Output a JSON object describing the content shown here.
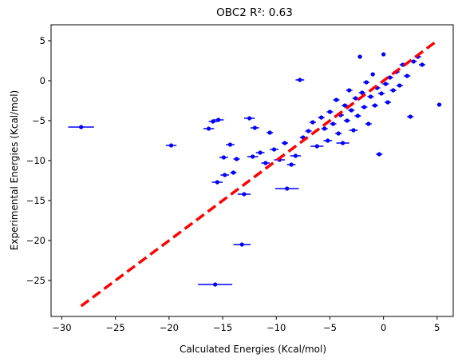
{
  "chart_data": {
    "type": "scatter",
    "title": "OBC2 R²: 0.63",
    "xlabel": "Calculated Energies (Kcal/mol)",
    "ylabel": "Experimental Energies (Kcal/mol)",
    "xlim": [
      -31,
      6.5
    ],
    "ylim": [
      -29.5,
      7
    ],
    "xticks": [
      -30,
      -25,
      -20,
      -15,
      -10,
      -5,
      0,
      5
    ],
    "yticks": [
      -25,
      -20,
      -15,
      -10,
      -5,
      0,
      5
    ],
    "grid": false,
    "legend": "none",
    "reference_line": {
      "x": [
        -28.2,
        5
      ],
      "y": [
        -28.2,
        5
      ],
      "color": "#ff0000",
      "style": "dashed"
    },
    "point_color": "#0000ff",
    "series": [
      {
        "points": [
          {
            "x": -28.2,
            "y": -5.8,
            "xerr": 1.2
          },
          {
            "x": -19.8,
            "y": -8.1,
            "xerr": 0.5
          },
          {
            "x": -15.7,
            "y": -25.5,
            "xerr": 1.6
          },
          {
            "x": -16.3,
            "y": -6.0,
            "xerr": 0.5
          },
          {
            "x": -15.9,
            "y": -5.1,
            "xerr": 0.4
          },
          {
            "x": -15.4,
            "y": -4.9,
            "xerr": 0.5
          },
          {
            "x": -14.9,
            "y": -9.6,
            "xerr": 0.4
          },
          {
            "x": -15.5,
            "y": -12.7,
            "xerr": 0.5
          },
          {
            "x": -14.8,
            "y": -11.8,
            "xerr": 0.4
          },
          {
            "x": -14.3,
            "y": -8.0,
            "xerr": 0.4
          },
          {
            "x": -14.0,
            "y": -11.5,
            "xerr": 0.3
          },
          {
            "x": -13.7,
            "y": -9.8,
            "xerr": 0.3
          },
          {
            "x": -13.0,
            "y": -14.2,
            "xerr": 0.6
          },
          {
            "x": -13.2,
            "y": -20.5,
            "xerr": 0.8
          },
          {
            "x": -12.5,
            "y": -4.7,
            "xerr": 0.5
          },
          {
            "x": -12.0,
            "y": -5.9,
            "xerr": 0.4
          },
          {
            "x": -12.2,
            "y": -9.5,
            "xerr": 0.5
          },
          {
            "x": -11.5,
            "y": -9.0,
            "xerr": 0.4
          },
          {
            "x": -11.0,
            "y": -10.3,
            "xerr": 0.4
          },
          {
            "x": -10.6,
            "y": -6.5,
            "xerr": 0.3
          },
          {
            "x": -10.2,
            "y": -8.6,
            "xerr": 0.4
          },
          {
            "x": -9.7,
            "y": -9.9,
            "xerr": 0.5
          },
          {
            "x": -9.2,
            "y": -7.8,
            "xerr": 0.3
          },
          {
            "x": -9.0,
            "y": -13.5,
            "xerr": 1.1
          },
          {
            "x": -8.6,
            "y": -10.5,
            "xerr": 0.4
          },
          {
            "x": -8.2,
            "y": -9.4,
            "xerr": 0.5
          },
          {
            "x": -7.8,
            "y": 0.1,
            "xerr": 0.4
          },
          {
            "x": -7.5,
            "y": -7.1,
            "xerr": 0.3
          },
          {
            "x": -7.0,
            "y": -6.3,
            "xerr": 0.3
          },
          {
            "x": -6.6,
            "y": -5.2,
            "xerr": 0.3
          },
          {
            "x": -6.2,
            "y": -8.2,
            "xerr": 0.6
          },
          {
            "x": -5.8,
            "y": -4.6,
            "xerr": 0.3
          },
          {
            "x": -5.5,
            "y": -6.0,
            "xerr": 0.3
          },
          {
            "x": -5.2,
            "y": -7.5,
            "xerr": 0.4
          },
          {
            "x": -5.0,
            "y": -3.9,
            "xerr": 0.3
          },
          {
            "x": -4.7,
            "y": -5.4,
            "xerr": 0.3
          },
          {
            "x": -4.4,
            "y": -2.4,
            "xerr": 0.3
          },
          {
            "x": -4.2,
            "y": -6.6,
            "xerr": 0.3
          },
          {
            "x": -4.0,
            "y": -4.3,
            "xerr": 0.3
          },
          {
            "x": -3.8,
            "y": -7.8,
            "xerr": 0.6
          },
          {
            "x": -3.6,
            "y": -3.1,
            "xerr": 0.3
          },
          {
            "x": -3.4,
            "y": -5.0,
            "xerr": 0.3
          },
          {
            "x": -3.2,
            "y": -1.2,
            "xerr": 0.3
          },
          {
            "x": -3.0,
            "y": -3.7,
            "xerr": 0.3
          },
          {
            "x": -2.8,
            "y": -6.2,
            "xerr": 0.4
          },
          {
            "x": -2.6,
            "y": -2.2,
            "xerr": 0.3
          },
          {
            "x": -2.4,
            "y": -4.4,
            "xerr": 0.3
          },
          {
            "x": -2.2,
            "y": 3.0,
            "xerr": 0.2
          },
          {
            "x": -2.0,
            "y": -1.5,
            "xerr": 0.3
          },
          {
            "x": -1.8,
            "y": -3.3,
            "xerr": 0.3
          },
          {
            "x": -1.6,
            "y": -0.2,
            "xerr": 0.3
          },
          {
            "x": -1.4,
            "y": -5.4,
            "xerr": 0.3
          },
          {
            "x": -1.2,
            "y": -2.0,
            "xerr": 0.3
          },
          {
            "x": -1.0,
            "y": 0.8,
            "xerr": 0.2
          },
          {
            "x": -0.8,
            "y": -3.1,
            "xerr": 0.3
          },
          {
            "x": -0.6,
            "y": -0.9,
            "xerr": 0.3
          },
          {
            "x": -0.4,
            "y": -9.2,
            "xerr": 0.3
          },
          {
            "x": -0.2,
            "y": -1.6,
            "xerr": 0.3
          },
          {
            "x": 0.0,
            "y": 3.3,
            "xerr": 0.2
          },
          {
            "x": 0.2,
            "y": -0.4,
            "xerr": 0.3
          },
          {
            "x": 0.4,
            "y": -2.7,
            "xerr": 0.3
          },
          {
            "x": 0.6,
            "y": 0.4,
            "xerr": 0.3
          },
          {
            "x": 0.9,
            "y": -1.2,
            "xerr": 0.3
          },
          {
            "x": 1.2,
            "y": 1.1,
            "xerr": 0.3
          },
          {
            "x": 1.5,
            "y": -0.6,
            "xerr": 0.3
          },
          {
            "x": 1.8,
            "y": 2.0,
            "xerr": 0.3
          },
          {
            "x": 2.2,
            "y": 0.6,
            "xerr": 0.3
          },
          {
            "x": 2.5,
            "y": -4.5,
            "xerr": 0.3
          },
          {
            "x": 2.8,
            "y": 2.4,
            "xerr": 0.3
          },
          {
            "x": 3.2,
            "y": 3.0,
            "xerr": 0.3
          },
          {
            "x": 3.6,
            "y": 2.0,
            "xerr": 0.3
          },
          {
            "x": 5.2,
            "y": -3.0,
            "xerr": 0.2
          }
        ]
      }
    ]
  }
}
